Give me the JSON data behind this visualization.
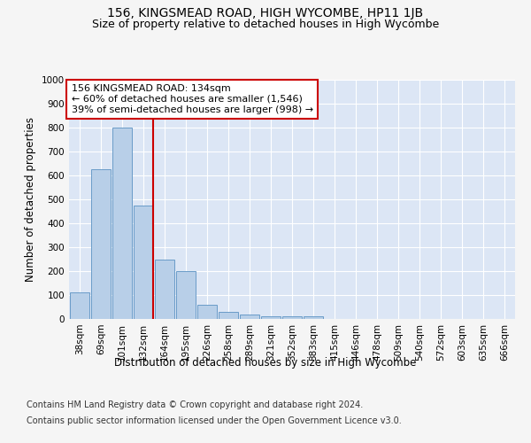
{
  "title": "156, KINGSMEAD ROAD, HIGH WYCOMBE, HP11 1JB",
  "subtitle": "Size of property relative to detached houses in High Wycombe",
  "xlabel": "Distribution of detached houses by size in High Wycombe",
  "ylabel": "Number of detached properties",
  "footer_line1": "Contains HM Land Registry data © Crown copyright and database right 2024.",
  "footer_line2": "Contains public sector information licensed under the Open Government Licence v3.0.",
  "categories": [
    "38sqm",
    "69sqm",
    "101sqm",
    "132sqm",
    "164sqm",
    "195sqm",
    "226sqm",
    "258sqm",
    "289sqm",
    "321sqm",
    "352sqm",
    "383sqm",
    "415sqm",
    "446sqm",
    "478sqm",
    "509sqm",
    "540sqm",
    "572sqm",
    "603sqm",
    "635sqm",
    "666sqm"
  ],
  "values": [
    110,
    625,
    800,
    475,
    250,
    200,
    60,
    28,
    18,
    12,
    10,
    10,
    0,
    0,
    0,
    0,
    0,
    0,
    0,
    0,
    0
  ],
  "bar_color": "#b8cfe8",
  "bar_edge_color": "#6a9cc8",
  "highlight_index": 3,
  "highlight_line_color": "#cc0000",
  "annotation_text": "156 KINGSMEAD ROAD: 134sqm\n← 60% of detached houses are smaller (1,546)\n39% of semi-detached houses are larger (998) →",
  "annotation_box_color": "#ffffff",
  "annotation_box_edge": "#cc0000",
  "ylim": [
    0,
    1000
  ],
  "yticks": [
    0,
    100,
    200,
    300,
    400,
    500,
    600,
    700,
    800,
    900,
    1000
  ],
  "plot_background": "#dce6f5",
  "fig_background": "#f5f5f5",
  "title_fontsize": 10,
  "subtitle_fontsize": 9,
  "axis_label_fontsize": 8.5,
  "tick_fontsize": 7.5,
  "footer_fontsize": 7,
  "annotation_fontsize": 8
}
